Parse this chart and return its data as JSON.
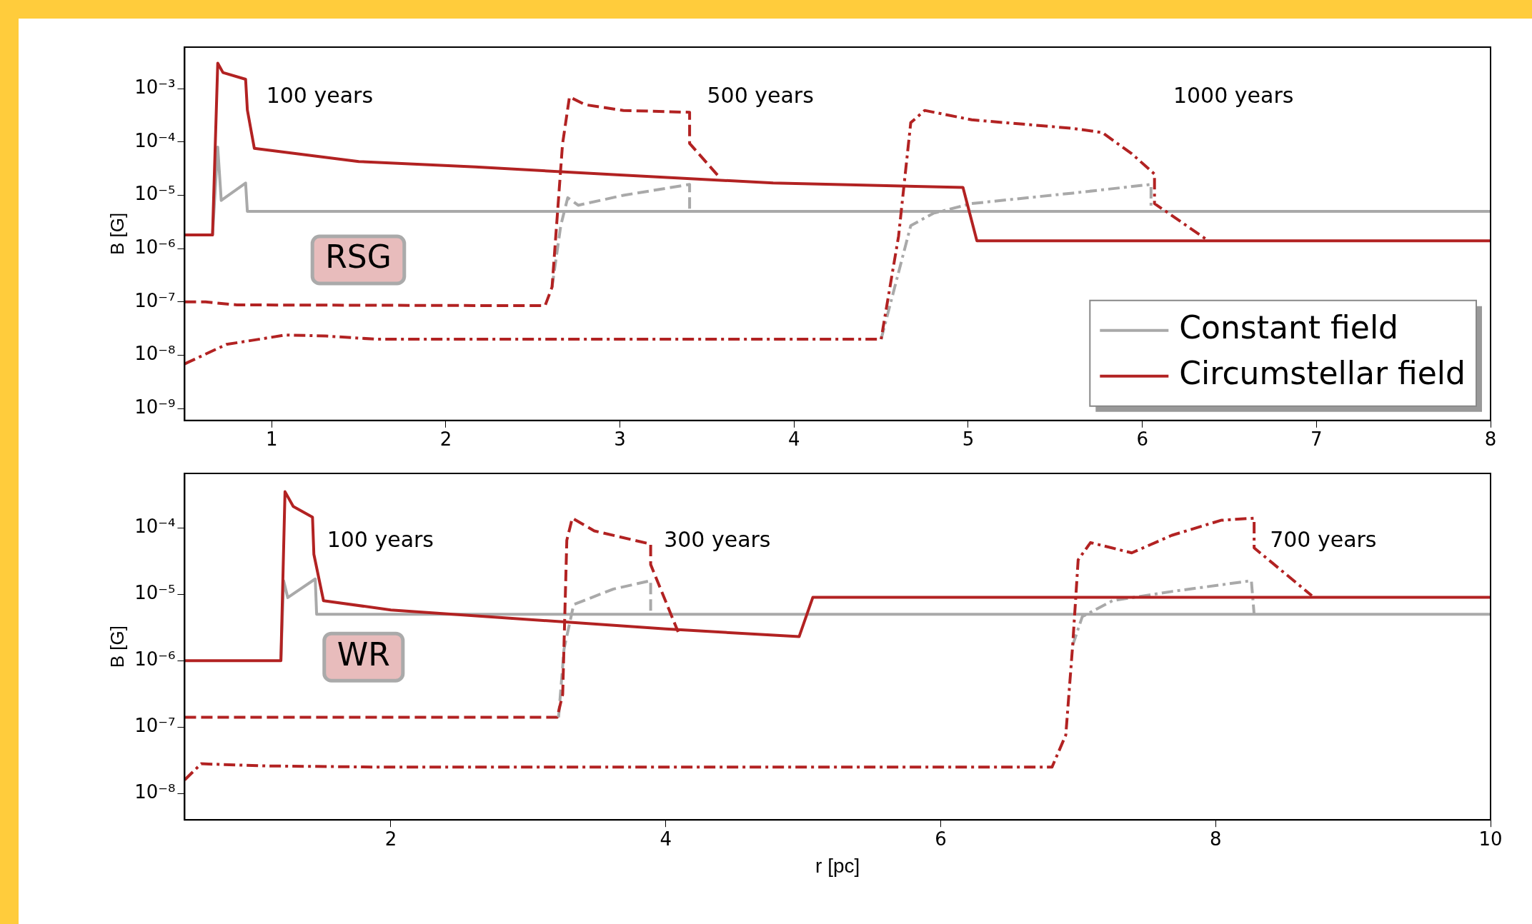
{
  "chart_data": [
    {
      "type": "line",
      "ylabel": "B [G]",
      "log": true,
      "grid": false,
      "legend": "bottom right",
      "xlim": [
        0.5,
        8
      ],
      "xticks": [
        1,
        2,
        3,
        4,
        5,
        6,
        7,
        8
      ],
      "ylim": [
        6e-10,
        0.006
      ],
      "yticks": [
        {
          "value": 1e-09,
          "label": "10⁻⁹"
        },
        {
          "value": 1e-08,
          "label": "10⁻⁸"
        },
        {
          "value": 1e-07,
          "label": "10⁻⁷"
        },
        {
          "value": 1e-06,
          "label": "10⁻⁶"
        },
        {
          "value": 1e-05,
          "label": "10⁻⁵"
        },
        {
          "value": 0.0001,
          "label": "10⁻⁴"
        },
        {
          "value": 0.001,
          "label": "10⁻³"
        }
      ],
      "series": [
        {
          "name": "Constant field",
          "color": "#a9a9a9",
          "line_style": "solid",
          "x": [
            0.66,
            0.69,
            0.71,
            0.85,
            0.86,
            8
          ],
          "values": [
            1.8e-06,
            8e-05,
            8e-06,
            1.7e-05,
            5e-06,
            5e-06
          ]
        },
        {
          "color": "#a9a9a9",
          "line_style": "dashed",
          "x": [
            2.61,
            2.66,
            2.7,
            2.76,
            3.02,
            3.4,
            3.4
          ],
          "values": [
            1.9e-07,
            2.7e-06,
            9e-06,
            6.5e-06,
            1e-05,
            1.6e-05,
            5e-06
          ]
        },
        {
          "color": "#a9a9a9",
          "line_style": "dashdot",
          "x": [
            4.5,
            4.67,
            4.8,
            5.02,
            5.6,
            6.05,
            6.05
          ],
          "values": [
            2e-08,
            2.7e-06,
            4.6e-06,
            7e-06,
            1.1e-05,
            1.6e-05,
            5e-06
          ]
        },
        {
          "name": "Circumstellar field",
          "color": "#b22222",
          "line_style": "solid",
          "x": [
            0.5,
            0.66,
            0.69,
            0.72,
            0.85,
            0.86,
            0.9,
            1.5,
            2.17,
            3,
            3.88,
            4.97,
            5.05,
            8
          ],
          "values": [
            1.8e-06,
            1.8e-06,
            0.003,
            0.002,
            0.0015,
            0.0004,
            7.6e-05,
            4.3e-05,
            3.4e-05,
            2.4e-05,
            1.7e-05,
            1.4e-05,
            1.4e-06,
            1.4e-06
          ]
        },
        {
          "color": "#b22222",
          "line_style": "dashed",
          "x": [
            0.5,
            0.62,
            0.8,
            2.57,
            2.61,
            2.67,
            2.71,
            2.8,
            3.02,
            3.4,
            3.4,
            3.57
          ],
          "values": [
            1e-07,
            1e-07,
            8.8e-08,
            8.5e-08,
            1.9e-07,
            9e-05,
            0.0007,
            0.0005,
            0.00039,
            0.00036,
            9.4e-05,
            2.2e-05
          ]
        },
        {
          "color": "#b22222",
          "line_style": "dashdot",
          "x": [
            0.5,
            0.74,
            1.08,
            1.31,
            1.6,
            4.5,
            4.52,
            4.6,
            4.67,
            4.75,
            5.02,
            5.6,
            5.77,
            5.94,
            6.07,
            6.07,
            6.38
          ],
          "values": [
            6.9e-09,
            1.6e-08,
            2.4e-08,
            2.3e-08,
            2e-08,
            2e-08,
            4.9e-08,
            1.7e-06,
            0.00023,
            0.00039,
            0.00026,
            0.00018,
            0.00015,
            6e-05,
            2.5e-05,
            7e-06,
            1.4e-06
          ]
        }
      ],
      "annotations": [
        "100 years",
        "500 years",
        "1000 years",
        "RSG"
      ]
    },
    {
      "type": "line",
      "xlabel": "r [pc]",
      "ylabel": "B [G]",
      "log": true,
      "grid": false,
      "xlim": [
        0.5,
        10
      ],
      "xticks": [
        2,
        4,
        6,
        8,
        10
      ],
      "ylim": [
        4e-09,
        0.00066
      ],
      "yticks": [
        {
          "value": 1e-08,
          "label": "10⁻⁸"
        },
        {
          "value": 1e-07,
          "label": "10⁻⁷"
        },
        {
          "value": 1e-06,
          "label": "10⁻⁶"
        },
        {
          "value": 1e-05,
          "label": "10⁻⁵"
        },
        {
          "value": 0.0001,
          "label": "10⁻⁴"
        }
      ],
      "series": [
        {
          "color": "#a9a9a9",
          "line_style": "solid",
          "x": [
            1.2,
            1.22,
            1.25,
            1.45,
            1.46,
            10
          ],
          "values": [
            1e-06,
            1.6e-05,
            8.9e-06,
            1.7e-05,
            5e-06,
            5e-06
          ]
        },
        {
          "color": "#a9a9a9",
          "line_style": "dashed",
          "x": [
            3.22,
            3.26,
            3.33,
            3.62,
            3.89,
            3.89
          ],
          "values": [
            1.4e-07,
            1.5e-06,
            7e-06,
            1.2e-05,
            1.6e-05,
            5e-06
          ]
        },
        {
          "color": "#a9a9a9",
          "line_style": "dashdot",
          "x": [
            6.96,
            7.03,
            7.25,
            7.68,
            8.26,
            8.28
          ],
          "values": [
            1.7e-06,
            4.6e-06,
            8e-06,
            1.1e-05,
            1.6e-05,
            5e-06
          ]
        },
        {
          "color": "#b22222",
          "line_style": "solid",
          "x": [
            0.5,
            1.2,
            1.23,
            1.29,
            1.43,
            1.44,
            1.51,
            2,
            4,
            4.97,
            5.07,
            10
          ],
          "values": [
            1e-06,
            1e-06,
            0.00035,
            0.00021,
            0.000145,
            4e-05,
            8e-06,
            5.8e-06,
            3e-06,
            2.3e-06,
            9e-06,
            9e-06
          ]
        },
        {
          "color": "#b22222",
          "line_style": "dashed",
          "x": [
            0.5,
            3.21,
            3.25,
            3.28,
            3.32,
            3.48,
            3.89,
            3.89,
            4.09
          ],
          "values": [
            1.4e-07,
            1.4e-07,
            3.1e-07,
            6.5e-05,
            0.00014,
            9e-05,
            5.7e-05,
            2.8e-05,
            2.7e-06
          ]
        },
        {
          "color": "#b22222",
          "line_style": "dashdot",
          "x": [
            0.5,
            0.62,
            1.09,
            1.88,
            6.81,
            6.91,
            6.96,
            7,
            7.09,
            7.39,
            7.68,
            8.04,
            8.28,
            8.28,
            8.7
          ],
          "values": [
            1.6e-08,
            2.8e-08,
            2.6e-08,
            2.5e-08,
            2.5e-08,
            7.6e-08,
            1.7e-06,
            3.3e-05,
            6e-05,
            4.2e-05,
            7.7e-05,
            0.00013,
            0.00014,
            5e-05,
            9.5e-06
          ]
        }
      ],
      "annotations": [
        "100 years",
        "300 years",
        "700 years",
        "WR"
      ]
    }
  ]
}
